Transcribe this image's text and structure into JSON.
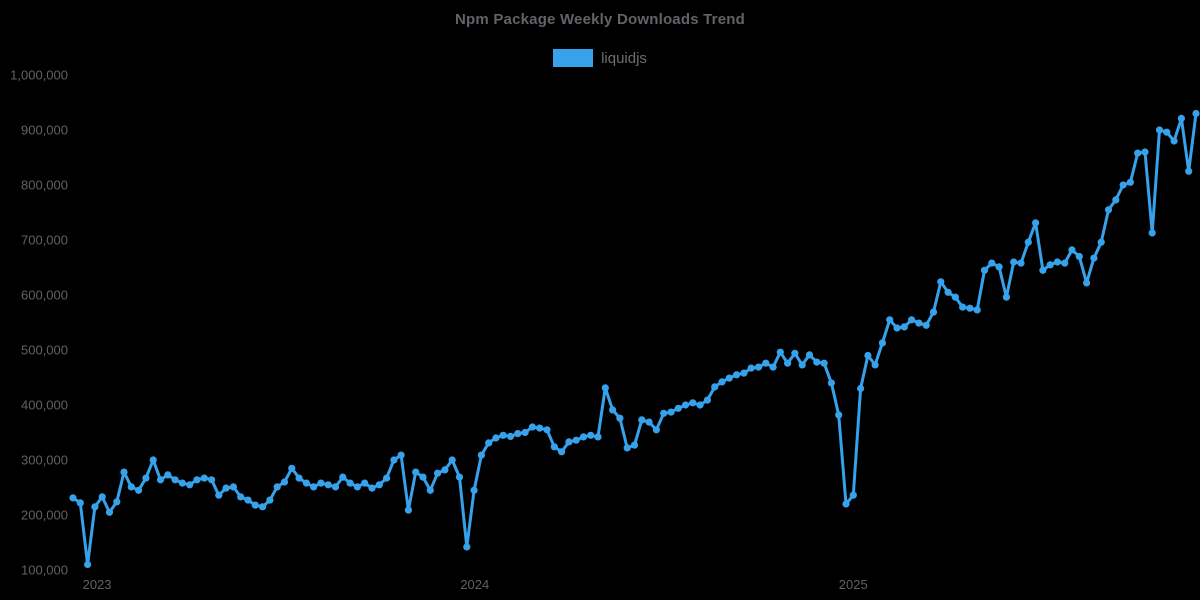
{
  "chart_data": {
    "type": "line",
    "title": "Npm Package Weekly Downloads Trend",
    "legend_entries": [
      "liquidjs"
    ],
    "legend_position": "top",
    "grid": false,
    "background_color": "#000000",
    "series_color": "#36A2EB",
    "text_color": "#5e6266",
    "x_unit": "week",
    "xlabel": "",
    "ylabel": "",
    "ylim": [
      100000,
      1000000
    ],
    "ytick_values": [
      100000,
      200000,
      300000,
      400000,
      500000,
      600000,
      700000,
      800000,
      900000,
      1000000
    ],
    "xtick_labels": [
      "2023",
      "2024",
      "2025"
    ],
    "xtick_week_indices": [
      3.3,
      55.1,
      107
    ],
    "series": [
      {
        "name": "liquidjs",
        "values": [
          231000,
          222000,
          110000,
          215000,
          233000,
          205000,
          224000,
          278000,
          251000,
          245000,
          267000,
          300000,
          264000,
          273000,
          264000,
          258000,
          255000,
          264000,
          267000,
          264000,
          236000,
          249000,
          251000,
          233000,
          227000,
          218000,
          215000,
          227000,
          251000,
          260000,
          285000,
          267000,
          258000,
          251000,
          258000,
          255000,
          251000,
          269000,
          258000,
          251000,
          258000,
          249000,
          255000,
          267000,
          300000,
          309000,
          209000,
          278000,
          269000,
          245000,
          276000,
          282000,
          300000,
          269000,
          142000,
          245000,
          309000,
          331000,
          340000,
          345000,
          343000,
          348000,
          350000,
          360000,
          358000,
          355000,
          324000,
          315000,
          333000,
          336000,
          342000,
          345000,
          342000,
          431000,
          391000,
          376000,
          322000,
          327000,
          373000,
          369000,
          355000,
          385000,
          387000,
          394000,
          400000,
          404000,
          400000,
          409000,
          433000,
          442000,
          449000,
          455000,
          458000,
          467000,
          469000,
          476000,
          469000,
          496000,
          476000,
          494000,
          473000,
          491000,
          478000,
          476000,
          440000,
          382000,
          220000,
          236000,
          430000,
          490000,
          473000,
          513000,
          555000,
          540000,
          542000,
          555000,
          549000,
          545000,
          569000,
          624000,
          605000,
          596000,
          578000,
          576000,
          573000,
          645000,
          658000,
          651000,
          596000,
          660000,
          658000,
          696000,
          731000,
          645000,
          655000,
          660000,
          658000,
          682000,
          670000,
          622000,
          667000,
          696000,
          755000,
          773000,
          800000,
          805000,
          858000,
          860000,
          713000,
          900000,
          896000,
          880000,
          921000,
          825000,
          930000
        ]
      }
    ]
  }
}
